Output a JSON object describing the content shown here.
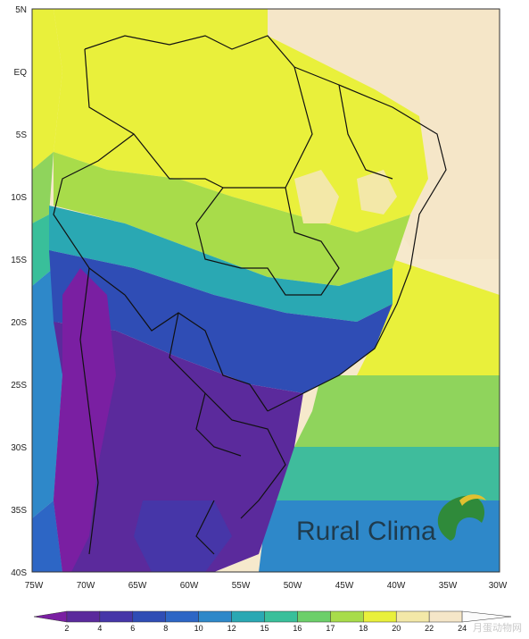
{
  "map": {
    "lat_labels": [
      "5N",
      "EQ",
      "5S",
      "10S",
      "15S",
      "20S",
      "25S",
      "30S",
      "35S",
      "40S"
    ],
    "lon_labels": [
      "75W",
      "70W",
      "65W",
      "60W",
      "55W",
      "50W",
      "45W",
      "40W",
      "35W",
      "30W"
    ],
    "colorbar": {
      "labels": [
        "2",
        "4",
        "6",
        "8",
        "10",
        "12",
        "15",
        "16",
        "17",
        "18",
        "20",
        "22",
        "24"
      ],
      "colors": [
        "#7a1fa2",
        "#5b2a9c",
        "#4636a8",
        "#2f4db5",
        "#2d66c5",
        "#2e88c9",
        "#2aa8b3",
        "#39bf9a",
        "#6ccf6a",
        "#a8dc4a",
        "#e9f03b",
        "#f3e8a8",
        "#f5e6c8",
        "#fbfbfb"
      ]
    },
    "brand": {
      "text": "Rural Clima",
      "accent": "#2f8a3a"
    },
    "watermark": {
      "text": "月蛋动物网"
    }
  }
}
